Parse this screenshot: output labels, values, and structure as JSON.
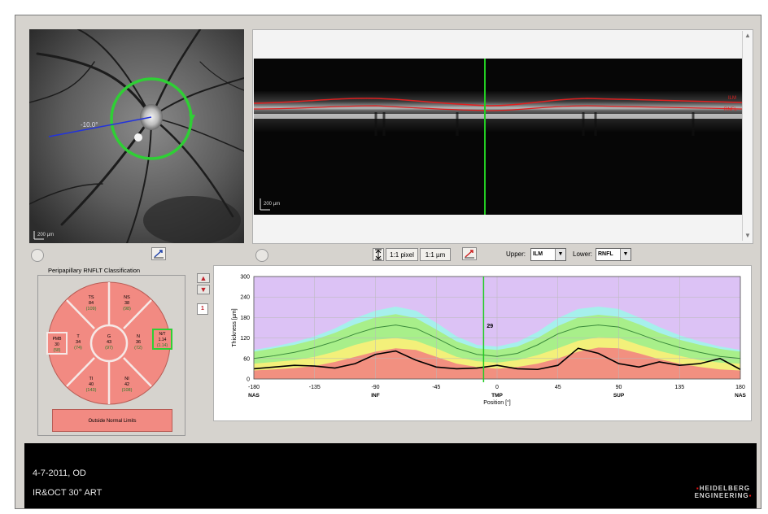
{
  "fundus": {
    "distance_label": "-10.0°",
    "scale_label": "200 µm"
  },
  "bscan": {
    "scale_label": "200 µm",
    "ilm_tag": "ILM",
    "rnfl_tag": "RNFL"
  },
  "toolbar": {
    "pixel_button": "1:1 pixel",
    "um_button": "1:1 µm",
    "upper_label": "Upper:",
    "upper_value": "ILM",
    "lower_label": "Lower:",
    "lower_value": "RNFL"
  },
  "classification": {
    "title": "Peripapillary RNFLT Classification",
    "sectors": {
      "TS": {
        "name": "TS",
        "value": "84",
        "ref": "(109)"
      },
      "NS": {
        "name": "NS",
        "value": "38",
        "ref": "(98)"
      },
      "T": {
        "name": "T",
        "value": "34",
        "ref": "(74)"
      },
      "G": {
        "name": "G",
        "value": "43",
        "ref": "(97)"
      },
      "N": {
        "name": "N",
        "value": "36",
        "ref": "(72)"
      },
      "TI": {
        "name": "TI",
        "value": "40",
        "ref": "(143)"
      },
      "NI": {
        "name": "NI",
        "value": "42",
        "ref": "(108)"
      },
      "PMB": {
        "name": "PMB",
        "value": "30",
        "ref": "(58)"
      },
      "NT": {
        "name": "N/T",
        "value": "1.14",
        "ref": "(1.14)"
      }
    },
    "result": "Outside Normal Limits"
  },
  "side_controls": {
    "index": "1"
  },
  "colors": {
    "red_band": "#f29080",
    "yellow_band": "#f3f07a",
    "green_band": "#a8ef8a",
    "cyan_band": "#a6f0ec",
    "purple_band": "#dcc2f5",
    "measured_line": "#000000",
    "mean_line": "#3a8a3a",
    "cursor_line": "#22cc22"
  },
  "chart_data": {
    "type": "area",
    "xlabel": "Position [°]",
    "ylabel": "Thickness [µm]",
    "xlim": [
      -180,
      180
    ],
    "ylim": [
      0,
      300
    ],
    "x_ticks": [
      -180,
      -135,
      -90,
      -45,
      0,
      45,
      90,
      135,
      180
    ],
    "y_ticks": [
      0,
      60,
      120,
      180,
      240,
      300
    ],
    "region_labels": [
      {
        "x": -180,
        "label": "NAS"
      },
      {
        "x": -90,
        "label": "INF"
      },
      {
        "x": 0,
        "label": "TMP"
      },
      {
        "x": 90,
        "label": "SUP"
      },
      {
        "x": 180,
        "label": "NAS"
      }
    ],
    "cursor": {
      "x": -10,
      "label": "29"
    },
    "x": [
      -180,
      -165,
      -150,
      -135,
      -120,
      -105,
      -90,
      -75,
      -60,
      -45,
      -30,
      -15,
      0,
      15,
      30,
      45,
      60,
      75,
      90,
      105,
      120,
      135,
      150,
      165,
      180
    ],
    "bands": [
      {
        "name": "red",
        "upper": [
          25,
          28,
          32,
          38,
          50,
          65,
          80,
          90,
          85,
          65,
          45,
          35,
          30,
          35,
          45,
          60,
          80,
          92,
          90,
          75,
          58,
          45,
          35,
          28,
          25
        ]
      },
      {
        "name": "yellow",
        "upper": [
          45,
          50,
          55,
          65,
          80,
          100,
          115,
          120,
          112,
          90,
          65,
          52,
          48,
          55,
          70,
          90,
          112,
          122,
          120,
          100,
          82,
          68,
          55,
          48,
          45
        ]
      },
      {
        "name": "green",
        "upper": [
          80,
          90,
          100,
          115,
          135,
          160,
          180,
          190,
          178,
          145,
          110,
          90,
          85,
          95,
          120,
          155,
          180,
          188,
          182,
          160,
          135,
          115,
          100,
          88,
          80
        ]
      },
      {
        "name": "cyan",
        "upper": [
          85,
          95,
          108,
          125,
          148,
          178,
          200,
          212,
          200,
          165,
          125,
          100,
          95,
          108,
          138,
          178,
          205,
          212,
          205,
          180,
          152,
          128,
          110,
          95,
          85
        ]
      }
    ],
    "series": [
      {
        "name": "mean",
        "values": [
          60,
          68,
          78,
          92,
          110,
          132,
          150,
          158,
          148,
          120,
          90,
          72,
          66,
          75,
          100,
          132,
          152,
          158,
          152,
          132,
          110,
          92,
          78,
          66,
          60
        ]
      },
      {
        "name": "measured",
        "values": [
          30,
          35,
          40,
          38,
          32,
          45,
          72,
          82,
          55,
          35,
          30,
          32,
          40,
          30,
          28,
          40,
          90,
          75,
          45,
          35,
          50,
          40,
          45,
          60,
          28
        ]
      }
    ]
  }
}
